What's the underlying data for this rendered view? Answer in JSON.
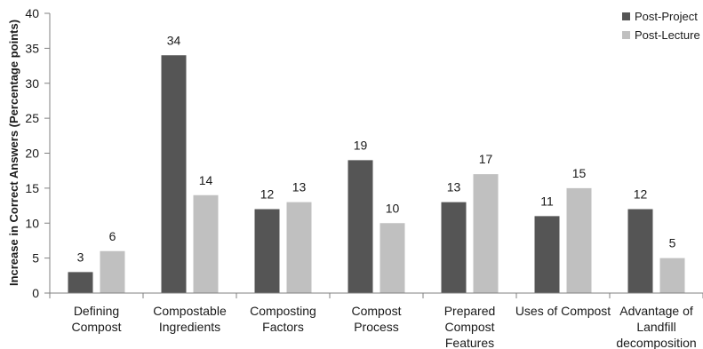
{
  "chart_data": {
    "type": "bar",
    "title": "",
    "xlabel": "",
    "ylabel": "Increase in Correct Answers (Percentage points)",
    "ylim": [
      0,
      40
    ],
    "yticks": [
      0,
      5,
      10,
      15,
      20,
      25,
      30,
      35,
      40
    ],
    "grid": false,
    "legend_position": "top-right",
    "categories": [
      [
        "Defining",
        "Compost"
      ],
      [
        "Compostable",
        "Ingredients"
      ],
      [
        "Composting",
        "Factors"
      ],
      [
        "Compost",
        "Process"
      ],
      [
        "Prepared",
        "Compost",
        "Features"
      ],
      [
        "Uses of Compost"
      ],
      [
        "Advantage of",
        "Landfill",
        "decomposition"
      ]
    ],
    "series": [
      {
        "name": "Post-Project",
        "color": "#555555",
        "values": [
          3,
          34,
          12,
          19,
          13,
          11,
          12
        ]
      },
      {
        "name": "Post-Lecture",
        "color": "#c0c0c0",
        "values": [
          6,
          14,
          13,
          10,
          17,
          15,
          5
        ]
      }
    ]
  }
}
